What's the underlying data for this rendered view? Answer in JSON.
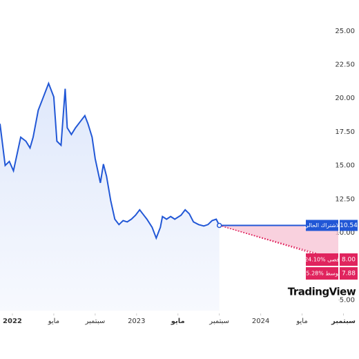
{
  "chart_data": {
    "type": "line",
    "x": [
      -1.2,
      -0.7,
      -0.3,
      0.1,
      0.8,
      1.3,
      1.7,
      2.0,
      2.5,
      2.9,
      3.5,
      4.0,
      4.3,
      4.7,
      5.1,
      5.3,
      5.7,
      6.1,
      6.6,
      7.0,
      7.3,
      7.7,
      8.0,
      8.5,
      8.8,
      9.1,
      9.5,
      9.9,
      10.3,
      10.7,
      11.1,
      11.5,
      11.9,
      12.3,
      12.7,
      13.0,
      13.5,
      13.9,
      14.3,
      14.5,
      14.9,
      15.3,
      15.7,
      16.3,
      16.7,
      17.1,
      17.5,
      18.0,
      18.5,
      18.9,
      19.3,
      19.7,
      20.0
    ],
    "series": [
      {
        "color": "#2157d6",
        "values": [
          18.1,
          15.0,
          15.3,
          14.6,
          17.1,
          16.8,
          16.3,
          17.1,
          19.1,
          19.9,
          21.1,
          20.1,
          16.8,
          16.5,
          20.7,
          17.8,
          17.3,
          17.8,
          18.3,
          18.7,
          18.1,
          17.1,
          15.5,
          13.7,
          15.1,
          14.2,
          12.4,
          11.0,
          10.6,
          10.9,
          10.8,
          11.0,
          11.3,
          11.7,
          11.3,
          11.0,
          10.4,
          9.6,
          10.4,
          11.2,
          11.0,
          11.2,
          11.0,
          11.3,
          11.7,
          11.4,
          10.8,
          10.6,
          10.5,
          10.6,
          10.9,
          11.0,
          10.54
        ]
      }
    ],
    "xlim": [
      -1.2,
      31.5
    ],
    "xticks": [
      {
        "value": 0,
        "label": "2022"
      },
      {
        "value": 4,
        "label": "مايو"
      },
      {
        "value": 8,
        "label": "سبتمبر"
      },
      {
        "value": 12,
        "label": "2023"
      },
      {
        "value": 16,
        "label": "مايو"
      },
      {
        "value": 20,
        "label": "سبتمبر"
      },
      {
        "value": 24,
        "label": "2024"
      },
      {
        "value": 28,
        "label": "مايو"
      },
      {
        "value": 32,
        "label": "سبتمبر"
      }
    ],
    "ylim": [
      4.2,
      27.3
    ],
    "yticks": [
      {
        "value": 25,
        "label": "25.00"
      },
      {
        "value": 22.5,
        "label": "22.50"
      },
      {
        "value": 20,
        "label": "20.00"
      },
      {
        "value": 17.5,
        "label": "17.50"
      },
      {
        "value": 15,
        "label": "15.00"
      },
      {
        "value": 12.5,
        "label": "12.50"
      },
      {
        "value": 10,
        "label": "10.00"
      },
      {
        "value": 5,
        "label": "5.00"
      }
    ],
    "current": {
      "label": "لاشتراك الحالي",
      "value": 10.54
    },
    "targets": [
      {
        "label": "-24.10% أقصى",
        "value": 8,
        "value_label": "8.00",
        "color": "#e0245e"
      },
      {
        "label": "-25.28% متوسط",
        "value": 7.88,
        "color": "#e0245e"
      }
    ],
    "logo": "TradingView"
  }
}
